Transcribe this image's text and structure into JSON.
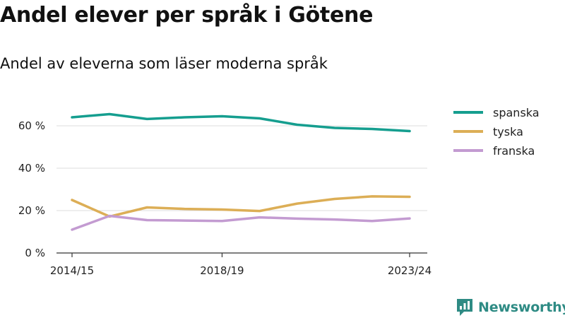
{
  "header": {
    "title": "Andel elever per språk i Götene",
    "subtitle": "Andel av eleverna som läser moderna språk"
  },
  "brand": {
    "name": "Newsworthy"
  },
  "colors": {
    "spanska": "#159e8f",
    "tyska": "#dcae56",
    "franska": "#c39bd1"
  },
  "chart_data": {
    "type": "line",
    "title": "Andel elever per språk i Götene",
    "subtitle": "Andel av eleverna som läser moderna språk",
    "xlabel": "",
    "ylabel": "",
    "x": [
      "2014/15",
      "2015/16",
      "2016/17",
      "2017/18",
      "2018/19",
      "2019/20",
      "2020/21",
      "2021/22",
      "2022/23",
      "2023/24"
    ],
    "x_tick_labels": [
      "2014/15",
      "2018/19",
      "2023/24"
    ],
    "x_tick_index": [
      0,
      4,
      9
    ],
    "y_ticks": [
      0,
      20,
      40,
      60
    ],
    "y_tick_labels": [
      "0 %",
      "20 %",
      "40 %",
      "60 %"
    ],
    "ylim": [
      0,
      70
    ],
    "grid": true,
    "legend_position": "top-right",
    "series": [
      {
        "name": "spanska",
        "color": "#159e8f",
        "values": [
          64,
          65.5,
          63.2,
          64,
          64.5,
          63.5,
          60.5,
          59,
          58.5,
          57.5
        ]
      },
      {
        "name": "tyska",
        "color": "#dcae56",
        "values": [
          25,
          17.2,
          21.5,
          20.8,
          20.5,
          19.8,
          23.3,
          25.5,
          26.7,
          26.5
        ]
      },
      {
        "name": "franska",
        "color": "#c39bd1",
        "values": [
          11,
          17.5,
          15.5,
          15.3,
          15.1,
          16.8,
          16.2,
          15.8,
          15.1,
          16.3
        ]
      }
    ]
  }
}
